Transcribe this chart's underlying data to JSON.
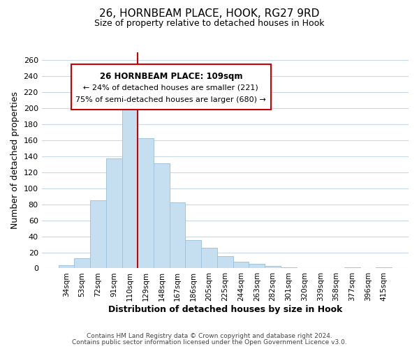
{
  "title_line1": "26, HORNBEAM PLACE, HOOK, RG27 9RD",
  "title_line2": "Size of property relative to detached houses in Hook",
  "xlabel": "Distribution of detached houses by size in Hook",
  "ylabel": "Number of detached properties",
  "bar_labels": [
    "34sqm",
    "53sqm",
    "72sqm",
    "91sqm",
    "110sqm",
    "129sqm",
    "148sqm",
    "167sqm",
    "186sqm",
    "205sqm",
    "225sqm",
    "244sqm",
    "263sqm",
    "282sqm",
    "301sqm",
    "320sqm",
    "339sqm",
    "358sqm",
    "377sqm",
    "396sqm",
    "415sqm"
  ],
  "bar_values": [
    4,
    13,
    85,
    137,
    209,
    163,
    131,
    82,
    35,
    26,
    15,
    8,
    6,
    3,
    1,
    0,
    0,
    0,
    1,
    0,
    1
  ],
  "bar_color": "#c5dff0",
  "bar_edge_color": "#a0c4e0",
  "vline_color": "#cc0000",
  "vline_x_index": 4,
  "annotation_line1": "26 HORNBEAM PLACE: 109sqm",
  "annotation_line2": "← 24% of detached houses are smaller (221)",
  "annotation_line3": "75% of semi-detached houses are larger (680) →",
  "ylim": [
    0,
    270
  ],
  "yticks": [
    0,
    20,
    40,
    60,
    80,
    100,
    120,
    140,
    160,
    180,
    200,
    220,
    240,
    260
  ],
  "footnote1": "Contains HM Land Registry data © Crown copyright and database right 2024.",
  "footnote2": "Contains public sector information licensed under the Open Government Licence v3.0.",
  "background_color": "#ffffff",
  "grid_color": "#c8d8e8"
}
